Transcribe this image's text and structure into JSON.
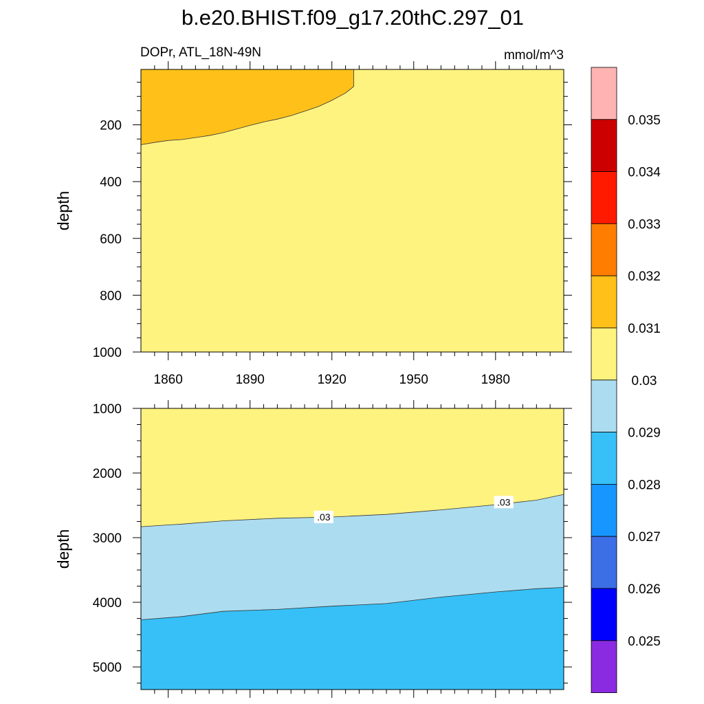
{
  "title": "b.e20.BHIST.f09_g17.20thC.297_01",
  "left_subtitle": "DOPr, ATL_18N-49N",
  "right_subtitle": "mmol/m^3",
  "colors": {
    "below_0_025": "#8a2be2",
    "c0_025_0_026": "#0000ff",
    "c0_026_0_027": "#3c6ee6",
    "c0_027_0_028": "#1896ff",
    "c0_028_0_029": "#36c0f7",
    "c0_029_0_030": "#acdcf0",
    "c0_030_0_031": "#fff380",
    "c0_031_0_032": "#ffc01a",
    "c0_032_0_033": "#ff7d00",
    "c0_033_0_034": "#ff1a00",
    "c0_034_0_035": "#cc0000",
    "above_0_035": "#ffb3b3"
  },
  "chart_data": [
    {
      "type": "heatmap",
      "panel": "upper",
      "ylabel": "depth",
      "xlim": [
        1850,
        2005
      ],
      "ylim": [
        1000,
        5
      ],
      "x_ticks": [
        "1860",
        "1890",
        "1920",
        "1950",
        "1980"
      ],
      "x_tick_values": [
        1860,
        1890,
        1920,
        1950,
        1980
      ],
      "y_ticks": [
        "200",
        "400",
        "600",
        "800",
        "1000"
      ],
      "y_tick_values": [
        200,
        400,
        600,
        800,
        1000
      ],
      "background_class": "0.03-0.031",
      "regions": [
        {
          "class": "0.031-0.032",
          "boundary_depth": [
            [
              1850,
              270
            ],
            [
              1855,
              262
            ],
            [
              1860,
              255
            ],
            [
              1865,
              252
            ],
            [
              1870,
              245
            ],
            [
              1875,
              238
            ],
            [
              1880,
              228
            ],
            [
              1885,
              215
            ],
            [
              1890,
              202
            ],
            [
              1895,
              190
            ],
            [
              1900,
              180
            ],
            [
              1905,
              168
            ],
            [
              1910,
              152
            ],
            [
              1915,
              136
            ],
            [
              1920,
              114
            ],
            [
              1925,
              88
            ],
            [
              1928,
              65
            ],
            [
              1928,
              5
            ]
          ]
        }
      ]
    },
    {
      "type": "heatmap",
      "panel": "lower",
      "ylabel": "depth",
      "xlim": [
        1850,
        2005
      ],
      "ylim": [
        5350,
        1000
      ],
      "y_ticks": [
        "1000",
        "2000",
        "3000",
        "4000",
        "5000"
      ],
      "y_tick_values": [
        1000,
        2000,
        3000,
        4000,
        5000
      ],
      "contour_0_03_depth": [
        [
          1850,
          2830
        ],
        [
          1865,
          2790
        ],
        [
          1880,
          2740
        ],
        [
          1900,
          2700
        ],
        [
          1920,
          2680
        ],
        [
          1940,
          2640
        ],
        [
          1960,
          2570
        ],
        [
          1980,
          2490
        ],
        [
          1995,
          2420
        ],
        [
          2005,
          2330
        ]
      ],
      "contour_0_029_depth": [
        [
          1850,
          4270
        ],
        [
          1865,
          4220
        ],
        [
          1880,
          4140
        ],
        [
          1900,
          4110
        ],
        [
          1920,
          4060
        ],
        [
          1940,
          4020
        ],
        [
          1960,
          3920
        ],
        [
          1980,
          3840
        ],
        [
          1995,
          3790
        ],
        [
          2005,
          3770
        ]
      ],
      "contour_labels": [
        {
          "text": ".03",
          "x": 1917,
          "depth": 2690
        },
        {
          "text": ".03",
          "x": 1983,
          "depth": 2460
        }
      ],
      "bands_top_to_bottom": [
        "0.03-0.031",
        "0.029-0.03",
        "0.028-0.029"
      ]
    }
  ],
  "colorbar": {
    "labels": [
      "0.035",
      "0.034",
      "0.033",
      "0.032",
      "0.031",
      "0.03",
      "0.029",
      "0.028",
      "0.027",
      "0.026",
      "0.025"
    ],
    "boxes_top_to_bottom": [
      "above_0_035",
      "c0_034_0_035",
      "c0_033_0_034",
      "c0_032_0_033",
      "c0_031_0_032",
      "c0_030_0_031",
      "c0_029_0_030",
      "c0_028_0_029",
      "c0_027_0_028",
      "c0_026_0_027",
      "c0_025_0_026",
      "below_0_025"
    ]
  }
}
